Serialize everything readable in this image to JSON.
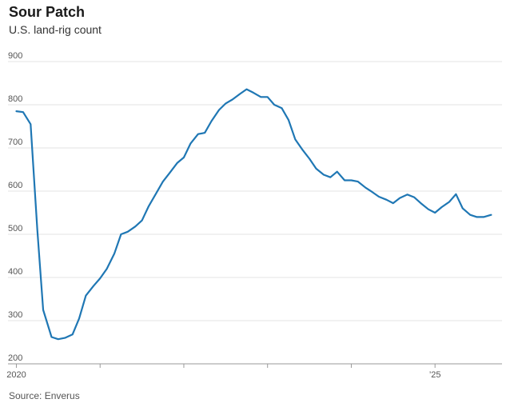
{
  "chart_data": {
    "type": "line",
    "title": "Sour Patch",
    "subtitle": "U.S. land-rig count",
    "source": "Source: Enverus",
    "xlabel": "",
    "ylabel": "",
    "ylim": [
      200,
      900
    ],
    "yticks": [
      900,
      800,
      700,
      600,
      500,
      400,
      300,
      200
    ],
    "grid": true,
    "xtick_labels": [
      {
        "year": 2020,
        "label": "2020"
      },
      {
        "year": 2025,
        "label": "’25"
      }
    ],
    "xtick_years": [
      2020,
      2021,
      2022,
      2023,
      2024,
      2025
    ],
    "x_range": [
      2019.9,
      2025.8
    ],
    "line_color": "#1f77b4",
    "series": [
      {
        "points": [
          [
            2020.0,
            785
          ],
          [
            2020.08,
            783
          ],
          [
            2020.17,
            755
          ],
          [
            2020.25,
            510
          ],
          [
            2020.32,
            325
          ],
          [
            2020.42,
            262
          ],
          [
            2020.5,
            257
          ],
          [
            2020.58,
            260
          ],
          [
            2020.67,
            268
          ],
          [
            2020.75,
            305
          ],
          [
            2020.83,
            358
          ],
          [
            2020.92,
            380
          ],
          [
            2021.0,
            398
          ],
          [
            2021.08,
            420
          ],
          [
            2021.17,
            455
          ],
          [
            2021.25,
            500
          ],
          [
            2021.33,
            506
          ],
          [
            2021.42,
            518
          ],
          [
            2021.5,
            532
          ],
          [
            2021.58,
            565
          ],
          [
            2021.67,
            595
          ],
          [
            2021.75,
            622
          ],
          [
            2021.83,
            642
          ],
          [
            2021.92,
            665
          ],
          [
            2022.0,
            678
          ],
          [
            2022.08,
            710
          ],
          [
            2022.17,
            732
          ],
          [
            2022.25,
            735
          ],
          [
            2022.33,
            762
          ],
          [
            2022.42,
            788
          ],
          [
            2022.5,
            803
          ],
          [
            2022.58,
            812
          ],
          [
            2022.67,
            825
          ],
          [
            2022.75,
            836
          ],
          [
            2022.83,
            828
          ],
          [
            2022.92,
            818
          ],
          [
            2023.0,
            818
          ],
          [
            2023.08,
            800
          ],
          [
            2023.17,
            792
          ],
          [
            2023.25,
            765
          ],
          [
            2023.33,
            720
          ],
          [
            2023.42,
            695
          ],
          [
            2023.5,
            675
          ],
          [
            2023.58,
            652
          ],
          [
            2023.67,
            638
          ],
          [
            2023.75,
            632
          ],
          [
            2023.83,
            645
          ],
          [
            2023.92,
            625
          ],
          [
            2024.0,
            625
          ],
          [
            2024.08,
            622
          ],
          [
            2024.17,
            608
          ],
          [
            2024.25,
            598
          ],
          [
            2024.33,
            587
          ],
          [
            2024.42,
            580
          ],
          [
            2024.5,
            572
          ],
          [
            2024.58,
            584
          ],
          [
            2024.67,
            592
          ],
          [
            2024.75,
            586
          ],
          [
            2024.83,
            572
          ],
          [
            2024.92,
            558
          ],
          [
            2025.0,
            550
          ],
          [
            2025.08,
            563
          ],
          [
            2025.17,
            575
          ],
          [
            2025.25,
            593
          ],
          [
            2025.33,
            560
          ],
          [
            2025.42,
            545
          ],
          [
            2025.5,
            540
          ],
          [
            2025.58,
            540
          ],
          [
            2025.67,
            545
          ]
        ]
      }
    ]
  }
}
